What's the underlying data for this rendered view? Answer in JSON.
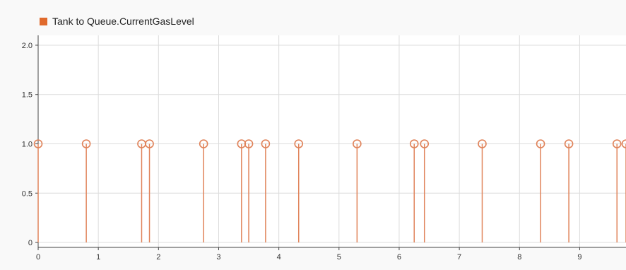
{
  "chart_data": {
    "type": "stem",
    "title": "",
    "xlabel": "",
    "ylabel": "",
    "legend": {
      "placement": "top-left",
      "entries": [
        "Tank to Queue.CurrentGasLevel"
      ]
    },
    "series": [
      {
        "name": "Tank to Queue.CurrentGasLevel",
        "color": "#e0835a",
        "marker": "circle-open",
        "x": [
          0.0,
          0.8,
          1.72,
          1.85,
          2.75,
          3.38,
          3.5,
          3.78,
          4.33,
          5.3,
          6.25,
          6.42,
          7.38,
          8.35,
          8.82,
          9.62,
          9.77
        ],
        "y": [
          1,
          1,
          1,
          1,
          1,
          1,
          1,
          1,
          1,
          1,
          1,
          1,
          1,
          1,
          1,
          1,
          1
        ]
      }
    ],
    "xlim": [
      0,
      9.77
    ],
    "ylim": [
      -0.05,
      2.1
    ],
    "xticks": [
      0,
      1,
      2,
      3,
      4,
      5,
      6,
      7,
      8,
      9
    ],
    "xtick_labels": [
      "0",
      "1",
      "2",
      "3",
      "4",
      "5",
      "6",
      "7",
      "8",
      "9"
    ],
    "yticks": [
      0,
      0.5,
      1.0,
      1.5,
      2.0
    ],
    "ytick_labels": [
      "0",
      "0.5",
      "1.0",
      "1.5",
      "2.0"
    ],
    "grid": true
  }
}
